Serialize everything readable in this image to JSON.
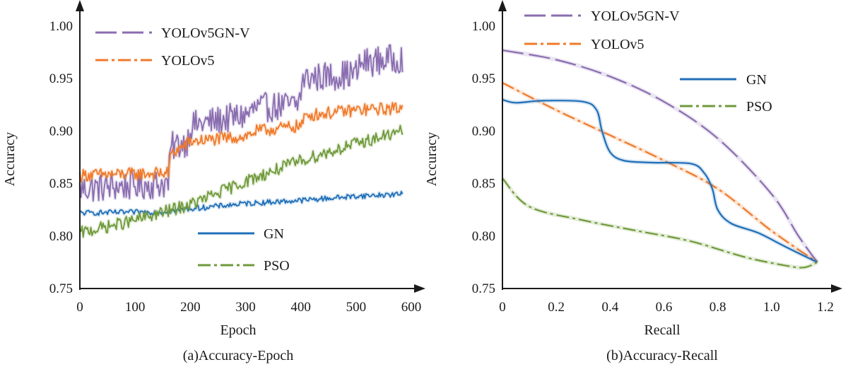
{
  "colors": {
    "purple": "#8a6db0",
    "orange": "#f07a2a",
    "blue": "#1f6fb8",
    "green": "#6f9a3a",
    "axis": "#1a1a1a"
  },
  "chart_data": [
    {
      "id": "a",
      "type": "line",
      "caption": "(a)Accuracy-Epoch",
      "xlabel": "Epoch",
      "ylabel": "Accuracy",
      "xlim": [
        0,
        600
      ],
      "ylim": [
        0.75,
        1.0
      ],
      "xticks": [
        0,
        100,
        200,
        300,
        400,
        500,
        600
      ],
      "xtick_labels": [
        "0",
        "100",
        "200",
        "300",
        "400",
        "500",
        "600"
      ],
      "yticks": [
        0.75,
        0.8,
        0.85,
        0.9,
        0.95,
        1.0
      ],
      "ytick_labels": [
        "0.75",
        "0.80",
        "0.85",
        "0.90",
        "0.95",
        "1.00"
      ],
      "legend": [
        {
          "name": "YOLOv5GN-V",
          "key": "purple",
          "style": "dashed"
        },
        {
          "name": "YOLOv5",
          "key": "orange",
          "style": "dashdot"
        },
        {
          "name": "GN",
          "key": "blue",
          "style": "solid"
        },
        {
          "name": "PSO",
          "key": "green",
          "style": "dashdot"
        }
      ],
      "series": [
        {
          "name": "YOLOv5GN-V",
          "key": "purple",
          "style": "dashed",
          "noise": 0.014,
          "points": [
            [
              0,
              0.845
            ],
            [
              160,
              0.85
            ],
            [
              165,
              0.885
            ],
            [
              195,
              0.89
            ],
            [
              200,
              0.905
            ],
            [
              300,
              0.915
            ],
            [
              320,
              0.922
            ],
            [
              395,
              0.925
            ],
            [
              405,
              0.95
            ],
            [
              500,
              0.955
            ],
            [
              510,
              0.965
            ],
            [
              585,
              0.97
            ]
          ]
        },
        {
          "name": "YOLOv5",
          "key": "orange",
          "style": "dashdot",
          "noise": 0.006,
          "points": [
            [
              0,
              0.858
            ],
            [
              160,
              0.86
            ],
            [
              165,
              0.878
            ],
            [
              200,
              0.89
            ],
            [
              300,
              0.895
            ],
            [
              320,
              0.9
            ],
            [
              400,
              0.905
            ],
            [
              410,
              0.915
            ],
            [
              500,
              0.92
            ],
            [
              585,
              0.922
            ]
          ]
        },
        {
          "name": "GN",
          "key": "blue",
          "style": "solid",
          "noise": 0.0025,
          "points": [
            [
              0,
              0.822
            ],
            [
              150,
              0.823
            ],
            [
              200,
              0.826
            ],
            [
              300,
              0.831
            ],
            [
              400,
              0.834
            ],
            [
              500,
              0.838
            ],
            [
              585,
              0.84
            ]
          ]
        },
        {
          "name": "PSO",
          "key": "green",
          "style": "dashdot",
          "noise": 0.006,
          "points": [
            [
              0,
              0.803
            ],
            [
              100,
              0.815
            ],
            [
              200,
              0.83
            ],
            [
              300,
              0.852
            ],
            [
              400,
              0.872
            ],
            [
              500,
              0.888
            ],
            [
              585,
              0.9
            ]
          ]
        }
      ]
    },
    {
      "id": "b",
      "type": "line",
      "caption": "(b)Accuracy-Recall",
      "xlabel": "Recall",
      "ylabel": "Accuracy",
      "xlim": [
        0,
        1.2
      ],
      "ylim": [
        0.75,
        1.0
      ],
      "xticks": [
        0,
        0.2,
        0.4,
        0.6,
        0.8,
        1.0,
        1.2
      ],
      "xtick_labels": [
        "0",
        "0.2",
        "0.4",
        "0.6",
        "0.8",
        "1.0",
        "1.2"
      ],
      "yticks": [
        0.75,
        0.8,
        0.85,
        0.9,
        0.95,
        1.0
      ],
      "ytick_labels": [
        "0.75",
        "0.80",
        "0.85",
        "0.90",
        "0.95",
        "1.00"
      ],
      "legend": [
        {
          "name": "YOLOv5GN-V",
          "key": "purple",
          "style": "dashed"
        },
        {
          "name": "YOLOv5",
          "key": "orange",
          "style": "dashdot"
        },
        {
          "name": "GN",
          "key": "blue",
          "style": "solid"
        },
        {
          "name": "PSO",
          "key": "green",
          "style": "dashdot"
        }
      ],
      "series": [
        {
          "name": "YOLOv5GN-V",
          "key": "purple",
          "style": "dashed",
          "points": [
            [
              0,
              0.977
            ],
            [
              0.2,
              0.968
            ],
            [
              0.4,
              0.952
            ],
            [
              0.6,
              0.928
            ],
            [
              0.8,
              0.893
            ],
            [
              1.0,
              0.84
            ],
            [
              1.1,
              0.8
            ],
            [
              1.17,
              0.775
            ]
          ]
        },
        {
          "name": "YOLOv5",
          "key": "orange",
          "style": "dashdot",
          "points": [
            [
              0,
              0.946
            ],
            [
              0.2,
              0.92
            ],
            [
              0.4,
              0.896
            ],
            [
              0.6,
              0.872
            ],
            [
              0.8,
              0.845
            ],
            [
              1.0,
              0.805
            ],
            [
              1.17,
              0.775
            ]
          ]
        },
        {
          "name": "GN",
          "key": "blue",
          "style": "solid",
          "points": [
            [
              0,
              0.93
            ],
            [
              0.05,
              0.927
            ],
            [
              0.15,
              0.929
            ],
            [
              0.3,
              0.928
            ],
            [
              0.35,
              0.92
            ],
            [
              0.37,
              0.9
            ],
            [
              0.4,
              0.88
            ],
            [
              0.45,
              0.872
            ],
            [
              0.55,
              0.87
            ],
            [
              0.7,
              0.869
            ],
            [
              0.75,
              0.86
            ],
            [
              0.78,
              0.845
            ],
            [
              0.8,
              0.825
            ],
            [
              0.85,
              0.812
            ],
            [
              0.95,
              0.803
            ],
            [
              1.05,
              0.79
            ],
            [
              1.17,
              0.775
            ]
          ]
        },
        {
          "name": "PSO",
          "key": "green",
          "style": "dashdot",
          "points": [
            [
              0,
              0.855
            ],
            [
              0.1,
              0.828
            ],
            [
              0.3,
              0.815
            ],
            [
              0.5,
              0.805
            ],
            [
              0.7,
              0.795
            ],
            [
              0.9,
              0.78
            ],
            [
              1.05,
              0.772
            ],
            [
              1.12,
              0.77
            ],
            [
              1.17,
              0.775
            ]
          ]
        }
      ]
    }
  ]
}
